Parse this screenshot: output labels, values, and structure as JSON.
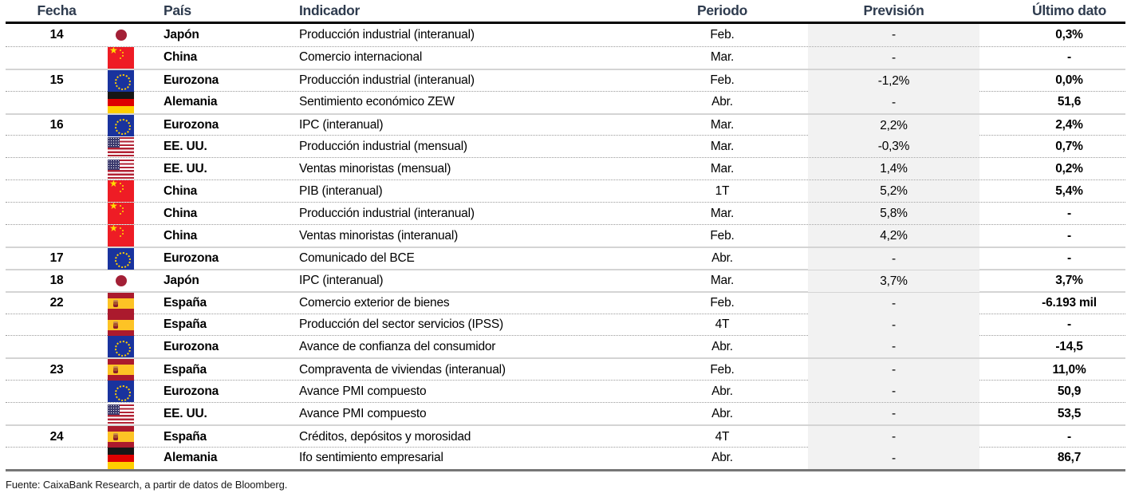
{
  "table": {
    "columns": [
      "Fecha",
      "País",
      "Indicador",
      "Periodo",
      "Previsión",
      "Último dato"
    ],
    "rows": [
      {
        "date": "14",
        "flag": "jp",
        "flag_icon": "japan-flag-icon",
        "country": "Japón",
        "indicator": "Producción industrial (interanual)",
        "period": "Feb.",
        "forecast": "-",
        "last_value": "0,3%"
      },
      {
        "date": "",
        "flag": "cn",
        "flag_icon": "china-flag-icon",
        "country": "China",
        "indicator": "Comercio internacional",
        "period": "Mar.",
        "forecast": "-",
        "last_value": "-"
      },
      {
        "date": "15",
        "flag": "eu",
        "flag_icon": "eurozone-flag-icon",
        "country": "Eurozona",
        "indicator": "Producción industrial (interanual)",
        "period": "Feb.",
        "forecast": "-1,2%",
        "last_value": "0,0%"
      },
      {
        "date": "",
        "flag": "de",
        "flag_icon": "germany-flag-icon",
        "country": "Alemania",
        "indicator": "Sentimiento económico ZEW",
        "period": "Abr.",
        "forecast": "-",
        "last_value": "51,6"
      },
      {
        "date": "16",
        "flag": "eu",
        "flag_icon": "eurozone-flag-icon",
        "country": "Eurozona",
        "indicator": "IPC (interanual)",
        "period": "Mar.",
        "forecast": "2,2%",
        "last_value": "2,4%"
      },
      {
        "date": "",
        "flag": "us",
        "flag_icon": "usa-flag-icon",
        "country": "EE. UU.",
        "indicator": "Producción industrial (mensual)",
        "period": "Mar.",
        "forecast": "-0,3%",
        "last_value": "0,7%"
      },
      {
        "date": "",
        "flag": "us",
        "flag_icon": "usa-flag-icon",
        "country": "EE. UU.",
        "indicator": "Ventas minoristas (mensual)",
        "period": "Mar.",
        "forecast": "1,4%",
        "last_value": "0,2%"
      },
      {
        "date": "",
        "flag": "cn",
        "flag_icon": "china-flag-icon",
        "country": "China",
        "indicator": "PIB (interanual)",
        "period": "1T",
        "forecast": "5,2%",
        "last_value": "5,4%"
      },
      {
        "date": "",
        "flag": "cn",
        "flag_icon": "china-flag-icon",
        "country": "China",
        "indicator": "Producción industrial (interanual)",
        "period": "Mar.",
        "forecast": "5,8%",
        "last_value": "-"
      },
      {
        "date": "",
        "flag": "cn",
        "flag_icon": "china-flag-icon",
        "country": "China",
        "indicator": "Ventas minoristas (interanual)",
        "period": "Feb.",
        "forecast": "4,2%",
        "last_value": "-"
      },
      {
        "date": "17",
        "flag": "eu",
        "flag_icon": "eurozone-flag-icon",
        "country": "Eurozona",
        "indicator": "Comunicado del BCE",
        "period": "Abr.",
        "forecast": "-",
        "last_value": "-"
      },
      {
        "date": "18",
        "flag": "jp",
        "flag_icon": "japan-flag-icon",
        "country": "Japón",
        "indicator": "IPC (interanual)",
        "period": "Mar.",
        "forecast": "3,7%",
        "last_value": "3,7%"
      },
      {
        "date": "22",
        "flag": "es",
        "flag_icon": "spain-flag-icon",
        "country": "España",
        "indicator": "Comercio exterior de bienes",
        "period": "Feb.",
        "forecast": "-",
        "last_value": "-6.193 mil"
      },
      {
        "date": "",
        "flag": "es",
        "flag_icon": "spain-flag-icon",
        "country": "España",
        "indicator": "Producción del sector servicios (IPSS)",
        "period": "4T",
        "forecast": "-",
        "last_value": "-"
      },
      {
        "date": "",
        "flag": "eu",
        "flag_icon": "eurozone-flag-icon",
        "country": "Eurozona",
        "indicator": "Avance de confianza del consumidor",
        "period": "Abr.",
        "forecast": "-",
        "last_value": "-14,5"
      },
      {
        "date": "23",
        "flag": "es",
        "flag_icon": "spain-flag-icon",
        "country": "España",
        "indicator": "Compraventa de viviendas (interanual)",
        "period": "Feb.",
        "forecast": "-",
        "last_value": "11,0%"
      },
      {
        "date": "",
        "flag": "eu",
        "flag_icon": "eurozone-flag-icon",
        "country": "Eurozona",
        "indicator": "Avance PMI compuesto",
        "period": "Abr.",
        "forecast": "-",
        "last_value": "50,9"
      },
      {
        "date": "",
        "flag": "us",
        "flag_icon": "usa-flag-icon",
        "country": "EE. UU.",
        "indicator": "Avance PMI compuesto",
        "period": "Abr.",
        "forecast": "-",
        "last_value": "53,5"
      },
      {
        "date": "24",
        "flag": "es",
        "flag_icon": "spain-flag-icon",
        "country": "España",
        "indicator": "Créditos, depósitos y morosidad",
        "period": "4T",
        "forecast": "-",
        "last_value": "-"
      },
      {
        "date": "",
        "flag": "de",
        "flag_icon": "germany-flag-icon",
        "country": "Alemania",
        "indicator": "Ifo sentimiento empresarial",
        "period": "Abr.",
        "forecast": "-",
        "last_value": "86,7"
      }
    ]
  },
  "source_note": "Fuente: CaixaBank Research, a partir de datos de Bloomberg.",
  "colors": {
    "header_text": "#2e3b4e",
    "forecast_column_bg": "#f2f2f2",
    "header_rule": "#000000",
    "bottom_rule": "#767676"
  }
}
